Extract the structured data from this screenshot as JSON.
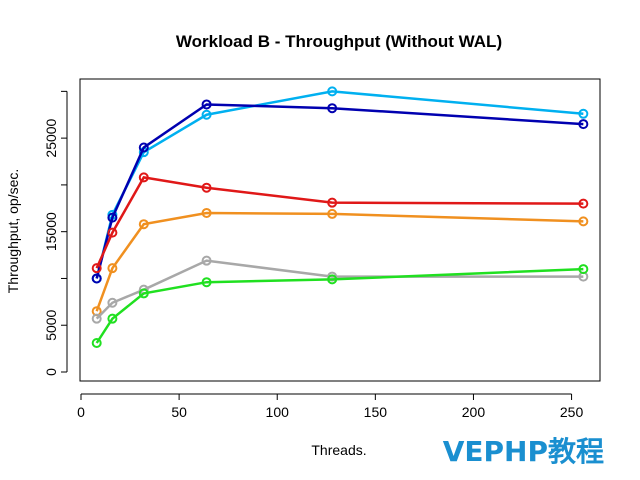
{
  "chart_data": {
    "type": "line",
    "title": "Workload B - Throughput (Without WAL)",
    "xlabel": "Threads.",
    "ylabel": "Throughput, op/sec.",
    "xlim": [
      0,
      265
    ],
    "ylim": [
      0,
      31000
    ],
    "x_ticks": [
      0,
      50,
      100,
      150,
      200,
      250
    ],
    "y_ticks": [
      0,
      5000,
      15000,
      25000
    ],
    "x_tick_labels": [
      "0",
      "50",
      "100",
      "150",
      "200",
      "250"
    ],
    "y_tick_labels": [
      "0",
      "5000",
      "15000",
      "25000"
    ],
    "grid": false,
    "legend": false,
    "x": [
      8,
      16,
      32,
      64,
      128,
      256
    ],
    "series": [
      {
        "color": "#00b0f0",
        "values": [
          10000,
          16800,
          23500,
          27500,
          30000,
          27600
        ]
      },
      {
        "color": "#0000b0",
        "values": [
          10000,
          16500,
          24000,
          28600,
          28200,
          26500
        ]
      },
      {
        "color": "#e01818",
        "values": [
          11100,
          14900,
          20800,
          19700,
          18100,
          18000
        ]
      },
      {
        "color": "#f09020",
        "values": [
          6500,
          11100,
          15800,
          17000,
          16900,
          16100
        ]
      },
      {
        "color": "#a8a8a8",
        "values": [
          5700,
          7400,
          8800,
          11900,
          10200,
          10200
        ]
      },
      {
        "color": "#20e020",
        "values": [
          3100,
          5700,
          8400,
          9600,
          9900,
          11000
        ]
      }
    ]
  },
  "watermark": {
    "text": "VEPHP教程",
    "color": "#1a8fd0"
  }
}
